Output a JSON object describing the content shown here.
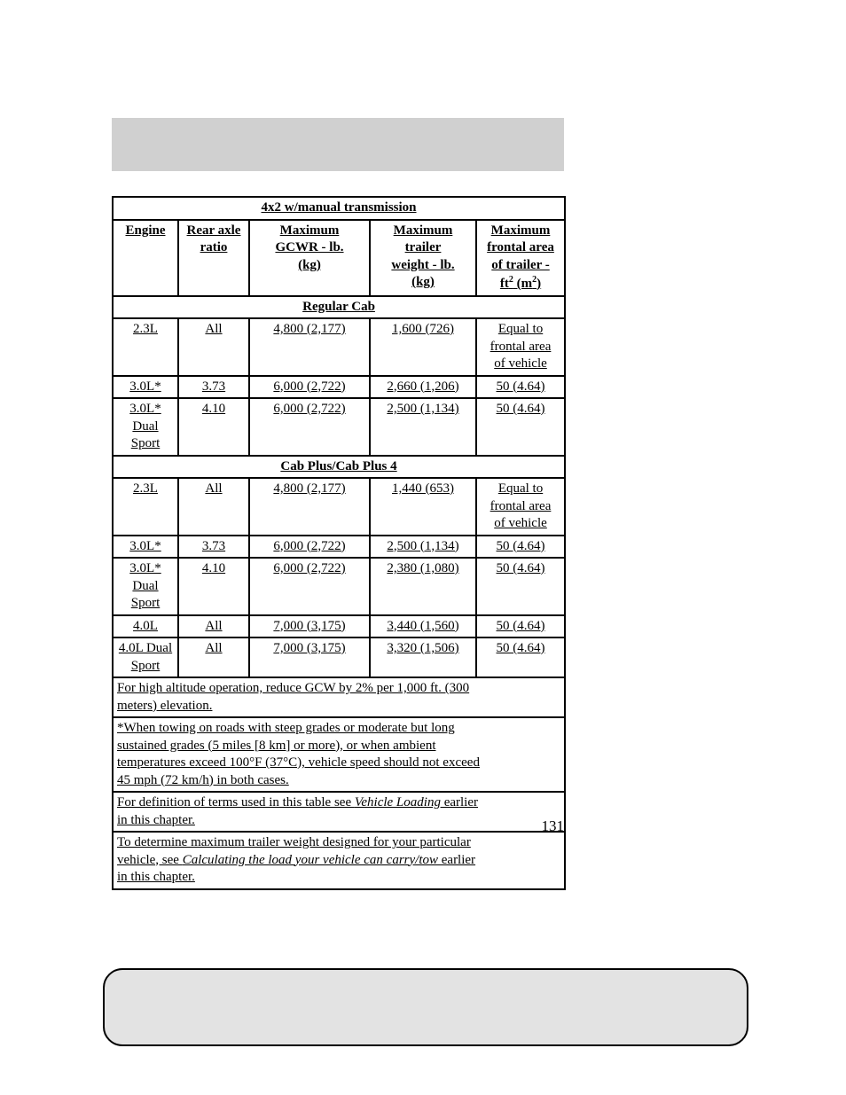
{
  "page_number": "131",
  "colors": {
    "header_bg": "#d0d0d0",
    "footer_bg": "#e3e3e3",
    "page_bg": "#ffffff",
    "border": "#000000"
  },
  "table": {
    "title": "4x2 w/manual transmission",
    "headers": {
      "engine": "Engine",
      "rear_axle_1": "Rear axle",
      "rear_axle_2": "ratio",
      "gcwr_1": "Maximum",
      "gcwr_2": "GCWR - lb.",
      "gcwr_3": "(kg)",
      "trailer_1": "Maximum",
      "trailer_2": "trailer",
      "trailer_3": "weight - lb.",
      "trailer_4": "(kg)",
      "frontal_1": "Maximum",
      "frontal_2": "frontal area",
      "frontal_3": "of trailer -",
      "frontal_4_pre": "ft",
      "frontal_4_sup1": "2",
      "frontal_4_mid": " (m",
      "frontal_4_sup2": "2",
      "frontal_4_post": ")"
    },
    "section_a": "Regular Cab",
    "rows_a": [
      {
        "engine": "2.3L",
        "ratio": "All",
        "gcwr": "4,800 (2,177)",
        "trailer": "1,600 (726)",
        "frontal_1": "Equal to",
        "frontal_2": "frontal area",
        "frontal_3": "of vehicle"
      },
      {
        "engine": "3.0L*",
        "ratio": "3.73",
        "gcwr": "6,000 (2,722)",
        "trailer": "2,660 (1,206)",
        "frontal_1": "50 (4.64)"
      },
      {
        "engine_1": "3.0L*",
        "engine_2": "Dual",
        "engine_3": "Sport",
        "ratio": "4.10",
        "gcwr": "6,000 (2,722)",
        "trailer": "2,500 (1,134)",
        "frontal_1": "50 (4.64)"
      }
    ],
    "section_b": "Cab Plus/Cab Plus 4",
    "rows_b": [
      {
        "engine": "2.3L",
        "ratio": "All",
        "gcwr": "4,800 (2,177)",
        "trailer": "1,440 (653)",
        "frontal_1": "Equal to",
        "frontal_2": "frontal area",
        "frontal_3": "of vehicle"
      },
      {
        "engine": "3.0L*",
        "ratio": "3.73",
        "gcwr": "6,000 (2,722)",
        "trailer": "2,500 (1,134)",
        "frontal_1": "50 (4.64)"
      },
      {
        "engine_1": "3.0L*",
        "engine_2": "Dual",
        "engine_3": "Sport",
        "ratio": "4.10",
        "gcwr": "6,000 (2,722)",
        "trailer": "2,380 (1,080)",
        "frontal_1": "50 (4.64)"
      },
      {
        "engine": "4.0L",
        "ratio": "All",
        "gcwr": "7,000 (3,175)",
        "trailer": "3,440 (1,560)",
        "frontal_1": "50 (4.64)"
      },
      {
        "engine_1": "4.0L Dual",
        "engine_2": "Sport",
        "ratio": "All",
        "gcwr": "7,000 (3,175)",
        "trailer": "3,320 (1,506)",
        "frontal_1": "50 (4.64)"
      }
    ],
    "notes": {
      "n1_l1": "For high altitude operation, reduce GCW by 2% per 1,000 ft. (300",
      "n1_l2": "meters) elevation.",
      "n2_l1": "*When towing on roads with steep grades or moderate but long",
      "n2_l2": "sustained grades (5 miles [8 km] or more), or when ambient",
      "n2_l3": "temperatures exceed 100°F (37°C), vehicle speed should not exceed",
      "n2_l4": "45 mph (72 km/h) in both cases.",
      "n3_pre": "For definition of terms used in this table see ",
      "n3_i": "Vehicle Loading",
      "n3_post": " earlier",
      "n3_l2": "in this chapter.",
      "n4_l1": "To determine maximum trailer weight designed for your particular",
      "n4_pre": "vehicle, see ",
      "n4_i": "Calculating the load your vehicle can carry/tow",
      "n4_post": " earlier",
      "n4_l3": "in this chapter."
    }
  }
}
